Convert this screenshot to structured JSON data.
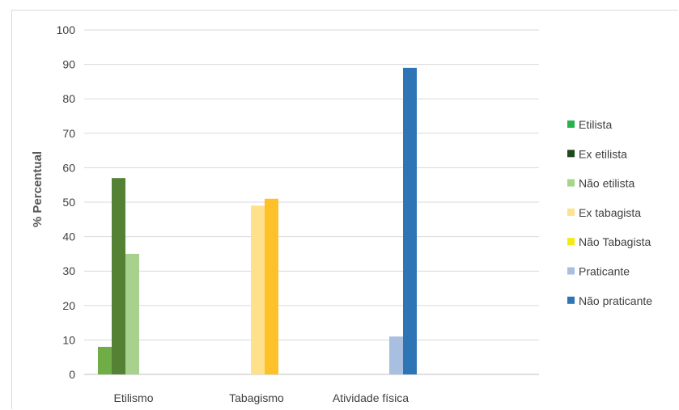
{
  "chart_data": {
    "type": "bar",
    "title": "",
    "xlabel": "",
    "ylabel": "% Percentual",
    "ylim": [
      0,
      100
    ],
    "yticks": [
      0,
      10,
      20,
      30,
      40,
      50,
      60,
      70,
      80,
      90,
      100
    ],
    "grid": true,
    "legend_position": "right",
    "groups": [
      {
        "category": "Etilismo",
        "bars": [
          {
            "series": "Etilista",
            "value": 8
          },
          {
            "series": "Ex etilista",
            "value": 57
          },
          {
            "series": "Não etilista",
            "value": 35
          }
        ]
      },
      {
        "category": "Tabagismo",
        "bars": [
          {
            "series": "Ex tabagista",
            "value": 49
          },
          {
            "series": "Não Tabagista",
            "value": 51
          }
        ]
      },
      {
        "category": "Atividade física",
        "bars": [
          {
            "series": "Praticante",
            "value": 11
          },
          {
            "series": "Não praticante",
            "value": 89
          }
        ]
      }
    ],
    "bar_colors": {
      "Etilista": "#70ad47",
      "Ex etilista": "#548235",
      "Não etilista": "#a9d18e",
      "Ex tabagista": "#ffe18c",
      "Não Tabagista": "#ffc12a",
      "Praticante": "#a9bfe0",
      "Não praticante": "#2e75b6"
    },
    "legend": [
      {
        "name": "Etilista",
        "color": "#28b24b"
      },
      {
        "name": "Ex etilista",
        "color": "#1e4a1c"
      },
      {
        "name": "Não etilista",
        "color": "#a6d68a"
      },
      {
        "name": "Ex tabagista",
        "color": "#fde38c"
      },
      {
        "name": "Não Tabagista",
        "color": "#f2ea12"
      },
      {
        "name": "Praticante",
        "color": "#a9bfe0"
      },
      {
        "name": "Não praticante",
        "color": "#2e75b6"
      }
    ]
  }
}
